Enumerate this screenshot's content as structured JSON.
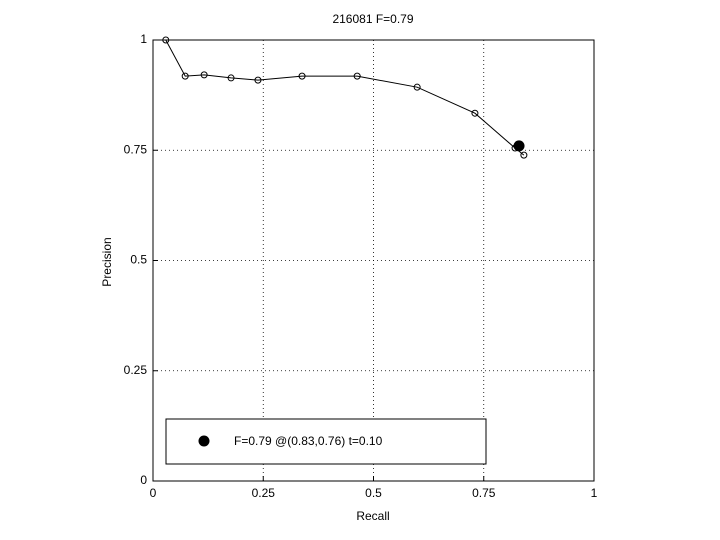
{
  "chart_data": {
    "type": "line",
    "title": "216081 F=0.79",
    "xlabel": "Recall",
    "ylabel": "Precision",
    "x": [
      0.029,
      0.073,
      0.116,
      0.177,
      0.238,
      0.338,
      0.463,
      0.599,
      0.73,
      0.821,
      0.841
    ],
    "values": [
      1.0,
      0.918,
      0.921,
      0.914,
      0.909,
      0.918,
      0.918,
      0.893,
      0.834,
      0.755,
      0.739
    ],
    "color": "#000000",
    "best": {
      "name": "F=0.79 @(0.83,0.76) t=0.10",
      "x": 0.83,
      "y": 0.76
    },
    "xlim": [
      0,
      1
    ],
    "ylim": [
      0,
      1
    ],
    "xticks": [
      0,
      0.25,
      0.5,
      0.75,
      1
    ],
    "yticks": [
      0,
      0.25,
      0.5,
      0.75,
      1
    ],
    "grid": true
  }
}
